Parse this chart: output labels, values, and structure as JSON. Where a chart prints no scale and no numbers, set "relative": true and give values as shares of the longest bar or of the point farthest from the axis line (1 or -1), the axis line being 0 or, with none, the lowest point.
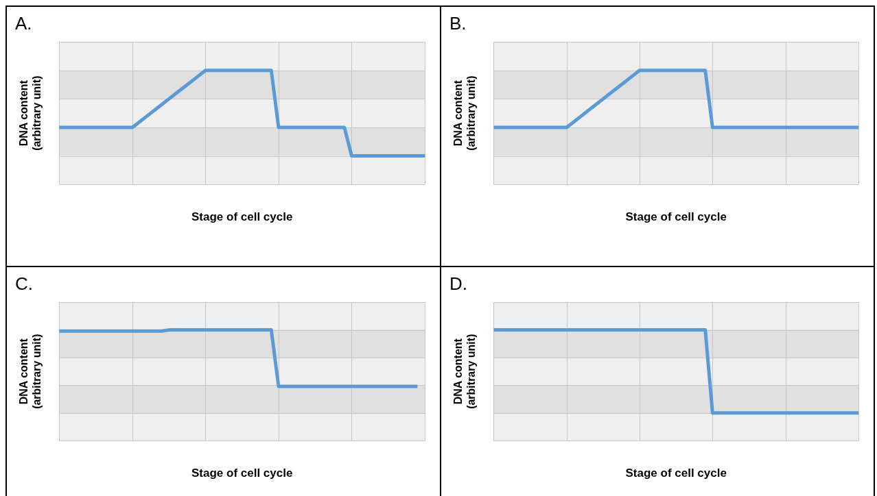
{
  "chart_data": [
    {
      "type": "line",
      "title": "A.",
      "xlabel": "Stage of cell cycle",
      "ylabel": "DNA content\n(arbitrary unit)",
      "relative": true,
      "grid": true,
      "categories": [
        null,
        null,
        null,
        null,
        null,
        null,
        null,
        null,
        null,
        null,
        null,
        null,
        null,
        null,
        null,
        null,
        null,
        null,
        null,
        null,
        null,
        null,
        null,
        null,
        null,
        null,
        null,
        null,
        null,
        null,
        null,
        null,
        null,
        null,
        null,
        null,
        null,
        null,
        null,
        null,
        null,
        null,
        null,
        null,
        null,
        null,
        null,
        null,
        null,
        null,
        null
      ],
      "series": [
        {
          "color": "#5b9bd5",
          "values": [
            0.5,
            0.5,
            0.5,
            0.5,
            0.5,
            0.5,
            0.5,
            0.5,
            0.5,
            0.5,
            0.5,
            0.55,
            0.6,
            0.65,
            0.7,
            0.75,
            0.8,
            0.85,
            0.9,
            0.95,
            1,
            1,
            1,
            1,
            1,
            1,
            1,
            1,
            1,
            1,
            0.5,
            0.5,
            0.5,
            0.5,
            0.5,
            0.5,
            0.5,
            0.5,
            0.5,
            0.5,
            0.25,
            0.25,
            0.25,
            0.25,
            0.25,
            0.25,
            0.25,
            0.25,
            0.25,
            0.25,
            0.25
          ]
        }
      ]
    },
    {
      "type": "line",
      "title": "B.",
      "xlabel": "Stage of cell cycle",
      "ylabel": "DNA content\n(arbitrary unit)",
      "relative": true,
      "grid": true,
      "categories": [
        null,
        null,
        null,
        null,
        null,
        null,
        null,
        null,
        null,
        null,
        null,
        null,
        null,
        null,
        null,
        null,
        null,
        null,
        null,
        null,
        null,
        null,
        null,
        null,
        null,
        null,
        null,
        null,
        null,
        null,
        null,
        null,
        null,
        null,
        null,
        null,
        null,
        null,
        null,
        null,
        null,
        null,
        null,
        null,
        null,
        null,
        null,
        null,
        null,
        null,
        null
      ],
      "series": [
        {
          "color": "#5b9bd5",
          "values": [
            0.5,
            0.5,
            0.5,
            0.5,
            0.5,
            0.5,
            0.5,
            0.5,
            0.5,
            0.5,
            0.5,
            0.55,
            0.6,
            0.65,
            0.7,
            0.75,
            0.8,
            0.85,
            0.9,
            0.95,
            1,
            1,
            1,
            1,
            1,
            1,
            1,
            1,
            1,
            1,
            0.5,
            0.5,
            0.5,
            0.5,
            0.5,
            0.5,
            0.5,
            0.5,
            0.5,
            0.5,
            0.5,
            0.5,
            0.5,
            0.5,
            0.5,
            0.5,
            0.5,
            0.5,
            0.5,
            0.5,
            0.5
          ]
        }
      ]
    },
    {
      "type": "line",
      "title": "C.",
      "xlabel": "Stage of cell cycle",
      "ylabel": "DNA content\n(arbitrary unit)",
      "relative": true,
      "grid": true,
      "categories": [
        null,
        null,
        null,
        null,
        null,
        null,
        null,
        null,
        null,
        null,
        null,
        null,
        null,
        null,
        null,
        null,
        null,
        null,
        null,
        null,
        null,
        null,
        null,
        null,
        null,
        null,
        null,
        null,
        null,
        null,
        null,
        null,
        null,
        null,
        null,
        null,
        null,
        null,
        null,
        null,
        null,
        null,
        null,
        null,
        null,
        null,
        null,
        null,
        null,
        null,
        null
      ],
      "series": [
        {
          "color": "#5b9bd5",
          "values": [
            0.99,
            0.99,
            0.99,
            0.99,
            0.99,
            0.99,
            0.99,
            0.99,
            0.99,
            0.99,
            0.99,
            0.99,
            0.99,
            0.99,
            0.99,
            1,
            1,
            1,
            1,
            1,
            1,
            1,
            1,
            1,
            1,
            1,
            1,
            1,
            1,
            1,
            0.49,
            0.49,
            0.49,
            0.49,
            0.49,
            0.49,
            0.49,
            0.49,
            0.49,
            0.49,
            0.49,
            0.49,
            0.49,
            0.49,
            0.49,
            0.49,
            0.49,
            0.49,
            0.49,
            0.49,
            null
          ]
        }
      ]
    },
    {
      "type": "line",
      "title": "D.",
      "xlabel": "Stage of cell cycle",
      "ylabel": "DNA content\n(arbitrary unit)",
      "relative": true,
      "grid": true,
      "categories": [
        null,
        null,
        null,
        null,
        null,
        null,
        null,
        null,
        null,
        null,
        null,
        null,
        null,
        null,
        null,
        null,
        null,
        null,
        null,
        null,
        null,
        null,
        null,
        null,
        null,
        null,
        null,
        null,
        null,
        null,
        null,
        null,
        null,
        null,
        null,
        null,
        null,
        null,
        null,
        null,
        null,
        null,
        null,
        null,
        null,
        null,
        null,
        null,
        null,
        null,
        null
      ],
      "series": [
        {
          "color": "#5b9bd5",
          "values": [
            1,
            1,
            1,
            1,
            1,
            1,
            1,
            1,
            1,
            1,
            1,
            1,
            1,
            1,
            1,
            1,
            1,
            1,
            1,
            1,
            1,
            1,
            1,
            1,
            1,
            1,
            1,
            1,
            1,
            1,
            0.25,
            0.25,
            0.25,
            0.25,
            0.25,
            0.25,
            0.25,
            0.25,
            0.25,
            0.25,
            0.25,
            0.25,
            0.25,
            0.25,
            0.25,
            0.25,
            0.25,
            0.25,
            0.25,
            0.25,
            0.25
          ]
        }
      ]
    }
  ]
}
